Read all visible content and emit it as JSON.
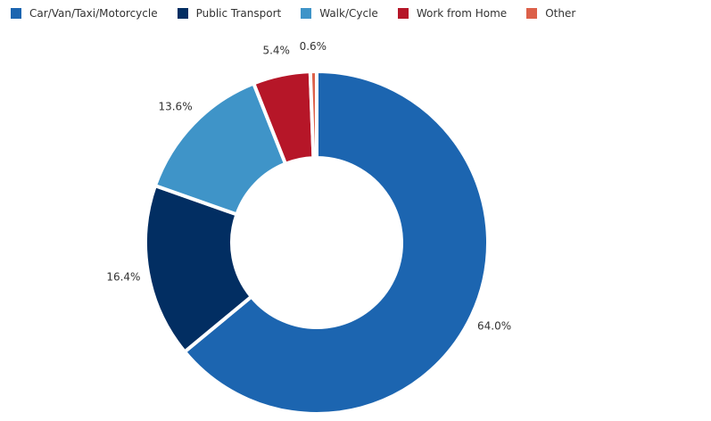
{
  "chart_data": {
    "type": "pie",
    "subtype": "donut",
    "title": "",
    "categories": [
      "Car/Van/Taxi/Motorcycle",
      "Public Transport",
      "Walk/Cycle",
      "Work from Home",
      "Other"
    ],
    "values": [
      64.0,
      16.4,
      13.6,
      5.4,
      0.6
    ],
    "value_labels": [
      "64.0%",
      "16.4%",
      "13.6%",
      "5.4%",
      "0.6%"
    ],
    "colors": [
      "#1c65b0",
      "#022e62",
      "#3f94c8",
      "#b61628",
      "#dc6049"
    ],
    "start_angle": 0,
    "direction": "clockwise",
    "legend_position": "top-left",
    "center": [
      355,
      272
    ],
    "outer_radius": 192,
    "inner_radius": 95
  },
  "legend": {
    "items": [
      {
        "label": "Car/Van/Taxi/Motorcycle",
        "color": "#1c65b0"
      },
      {
        "label": "Public Transport",
        "color": "#022e62"
      },
      {
        "label": "Walk/Cycle",
        "color": "#3f94c8"
      },
      {
        "label": "Work from Home",
        "color": "#b61628"
      },
      {
        "label": "Other",
        "color": "#dc6049"
      }
    ]
  }
}
